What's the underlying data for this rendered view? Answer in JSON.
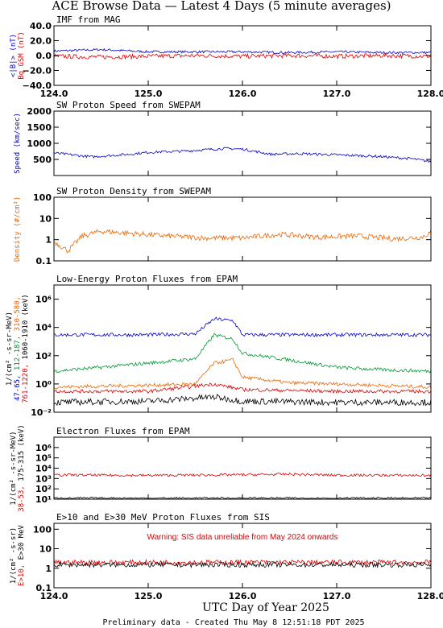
{
  "page": {
    "title": "ACE Browse Data — Latest 4 Days (5 minute averages)",
    "xlabel": "UTC Day of Year 2025",
    "footer": "Preliminary data - Created Thu May  8 12:51:18 PDT 2025",
    "colors": {
      "blue": "#0000cc",
      "red": "#dd0000",
      "green": "#009933",
      "orange": "#ee6600",
      "black": "#000000"
    }
  },
  "chart_data": [
    {
      "id": "mag",
      "type": "line",
      "title": "IMF from MAG",
      "scale": "linear",
      "ylim": [
        -40,
        40
      ],
      "yticks": [
        -40,
        -20,
        0,
        20,
        40
      ],
      "ytick_labels": [
        "−40.0",
        "−20.0",
        "0.0",
        "20.0",
        "40.0"
      ],
      "ylabel_lines": [
        {
          "text": "<|B|> (nT)",
          "color": "#0000cc"
        },
        {
          "text": "Bq GSM (nT)",
          "color": "#dd0000"
        }
      ],
      "xlim": [
        124,
        128
      ],
      "xticks": [
        124,
        125,
        126,
        127,
        128
      ],
      "xtick_labels": [
        "124.0",
        "125.0",
        "126.0",
        "127.0",
        "128.0"
      ],
      "series": [
        {
          "color": "#0000cc",
          "points": [
            [
              124,
              6
            ],
            [
              124.5,
              8
            ],
            [
              125,
              5
            ],
            [
              125.5,
              5
            ],
            [
              126,
              5
            ],
            [
              126.5,
              4
            ],
            [
              127,
              5
            ],
            [
              127.5,
              4
            ],
            [
              128,
              4
            ]
          ]
        },
        {
          "color": "#dd0000",
          "points": [
            [
              124,
              -1
            ],
            [
              124.5,
              -2
            ],
            [
              125,
              -1
            ],
            [
              125.5,
              0
            ],
            [
              126,
              -1
            ],
            [
              126.5,
              0
            ],
            [
              127,
              -1
            ],
            [
              127.5,
              0
            ],
            [
              128,
              -1
            ]
          ],
          "noise": 3
        }
      ]
    },
    {
      "id": "speed",
      "type": "line",
      "title": "SW Proton Speed from SWEPAM",
      "scale": "linear",
      "ylim": [
        0,
        2000
      ],
      "yticks": [
        500,
        1000,
        1500,
        2000
      ],
      "ytick_labels": [
        "500",
        "1000",
        "1500",
        "2000"
      ],
      "ylabel_lines": [
        {
          "text": "Speed (km/sec)",
          "color": "#0000cc"
        }
      ],
      "xlim": [
        124,
        128
      ],
      "xticks": [
        124,
        125,
        126,
        127,
        128
      ],
      "xtick_labels": [
        "",
        "",
        "",
        "",
        ""
      ],
      "series": [
        {
          "color": "#0000cc",
          "points": [
            [
              124,
              700
            ],
            [
              124.4,
              580
            ],
            [
              124.8,
              660
            ],
            [
              125,
              720
            ],
            [
              125.4,
              760
            ],
            [
              125.8,
              840
            ],
            [
              126,
              820
            ],
            [
              126.3,
              660
            ],
            [
              126.6,
              680
            ],
            [
              127,
              640
            ],
            [
              127.4,
              600
            ],
            [
              127.8,
              520
            ],
            [
              128,
              430
            ]
          ]
        }
      ]
    },
    {
      "id": "density",
      "type": "line",
      "title": "SW Proton Density from SWEPAM",
      "scale": "log",
      "ylim": [
        0.1,
        100
      ],
      "yticks": [
        0.1,
        1,
        10,
        100
      ],
      "ytick_labels": [
        "0.1",
        "1",
        "10",
        "100"
      ],
      "ylabel_lines": [
        {
          "text": "Density (#/cm³)",
          "color": "#ee6600"
        }
      ],
      "xlim": [
        124,
        128
      ],
      "xticks": [
        124,
        125,
        126,
        127,
        128
      ],
      "xtick_labels": [
        "",
        "",
        "",
        "",
        ""
      ],
      "series": [
        {
          "color": "#ee6600",
          "points": [
            [
              124,
              0.8
            ],
            [
              124.15,
              0.3
            ],
            [
              124.3,
              1.5
            ],
            [
              124.5,
              2.5
            ],
            [
              124.8,
              2
            ],
            [
              125.2,
              1.5
            ],
            [
              125.6,
              1.2
            ],
            [
              126,
              1.2
            ],
            [
              126.4,
              1.8
            ],
            [
              126.8,
              1.3
            ],
            [
              127.2,
              1.5
            ],
            [
              127.6,
              1.1
            ],
            [
              127.9,
              1.3
            ],
            [
              128,
              2.2
            ]
          ]
        }
      ]
    },
    {
      "id": "epam_p",
      "type": "line",
      "title": "Low-Energy Proton Fluxes from EPAM",
      "scale": "log",
      "ylim": [
        0.01,
        10000000
      ],
      "yticks": [
        0.01,
        1,
        100,
        10000,
        1000000
      ],
      "ytick_labels": [
        "10⁻²",
        "10⁰",
        "10²",
        "10⁴",
        "10⁶"
      ],
      "ylabel_lines": [
        {
          "parts": [
            {
              "text": "1/(cm² -s-sr-MeV)",
              "color": "#000000"
            }
          ]
        },
        {
          "parts": [
            {
              "text": "47-65, ",
              "color": "#0000cc"
            },
            {
              "text": "112-187, ",
              "color": "#009933"
            },
            {
              "text": "310-580,",
              "color": "#ee6600"
            }
          ]
        },
        {
          "parts": [
            {
              "text": "761-1220, ",
              "color": "#dd0000"
            },
            {
              "text": "1060-1910 (keV)",
              "color": "#000000"
            }
          ]
        }
      ],
      "xlim": [
        124,
        128
      ],
      "xticks": [
        124,
        125,
        126,
        127,
        128
      ],
      "xtick_labels": [
        "",
        "",
        "",
        "",
        ""
      ],
      "series": [
        {
          "color": "#0000cc",
          "points": [
            [
              124,
              3000
            ],
            [
              125,
              3000
            ],
            [
              125.5,
              3500
            ],
            [
              125.7,
              40000
            ],
            [
              125.9,
              30000
            ],
            [
              126,
              3000
            ],
            [
              127,
              3000
            ],
            [
              128,
              3000
            ]
          ]
        },
        {
          "color": "#009933",
          "points": [
            [
              124,
              8
            ],
            [
              124.5,
              15
            ],
            [
              125,
              30
            ],
            [
              125.5,
              60
            ],
            [
              125.7,
              3000
            ],
            [
              125.9,
              1500
            ],
            [
              126,
              150
            ],
            [
              126.5,
              50
            ],
            [
              127,
              15
            ],
            [
              127.5,
              10
            ],
            [
              128,
              8
            ]
          ]
        },
        {
          "color": "#ee6600",
          "points": [
            [
              124,
              0.6
            ],
            [
              125,
              0.8
            ],
            [
              125.5,
              1
            ],
            [
              125.7,
              30
            ],
            [
              125.9,
              50
            ],
            [
              126,
              3
            ],
            [
              126.5,
              1.2
            ],
            [
              127,
              1
            ],
            [
              128,
              0.6
            ]
          ]
        },
        {
          "color": "#dd0000",
          "points": [
            [
              124,
              0.3
            ],
            [
              125,
              0.3
            ],
            [
              125.7,
              1
            ],
            [
              126,
              0.4
            ],
            [
              127,
              0.3
            ],
            [
              128,
              0.3
            ]
          ]
        },
        {
          "color": "#000000",
          "points": [
            [
              124,
              0.05
            ],
            [
              125,
              0.06
            ],
            [
              125.7,
              0.12
            ],
            [
              126,
              0.06
            ],
            [
              127,
              0.05
            ],
            [
              128,
              0.05
            ]
          ],
          "noise": 0.45
        }
      ]
    },
    {
      "id": "epam_e",
      "type": "line",
      "title": "Electron Fluxes from EPAM",
      "scale": "log",
      "ylim": [
        10,
        10000000
      ],
      "yticks": [
        10,
        100,
        1000,
        10000,
        100000,
        1000000
      ],
      "ytick_labels": [
        "10¹",
        "10²",
        "10³",
        "10⁴",
        "10⁵",
        "10⁶"
      ],
      "ylabel_lines": [
        {
          "parts": [
            {
              "text": "1/(cm² -s-sr-MeV)",
              "color": "#000000"
            }
          ]
        },
        {
          "parts": [
            {
              "text": "38-53, ",
              "color": "#dd0000"
            },
            {
              "text": "175-315 (keV)",
              "color": "#000000"
            }
          ]
        }
      ],
      "xlim": [
        124,
        128
      ],
      "xticks": [
        124,
        125,
        126,
        127,
        128
      ],
      "xtick_labels": [
        "",
        "",
        "",
        "",
        ""
      ],
      "series": [
        {
          "color": "#dd0000",
          "points": [
            [
              124,
              2200
            ],
            [
              125,
              2000
            ],
            [
              126,
              2300
            ],
            [
              126.5,
              2600
            ],
            [
              127,
              2100
            ],
            [
              128,
              2000
            ]
          ]
        },
        {
          "color": "#000000",
          "points": [
            [
              124,
              12
            ],
            [
              125,
              12
            ],
            [
              126,
              12
            ],
            [
              127,
              12
            ],
            [
              128,
              12
            ]
          ]
        }
      ]
    },
    {
      "id": "sis",
      "type": "line",
      "title": "E>10 and E>30 MeV Proton Fluxes from SIS",
      "scale": "log",
      "ylim": [
        0.1,
        200
      ],
      "yticks": [
        0.1,
        1,
        10,
        100
      ],
      "ytick_labels": [
        "0.1",
        "1",
        "10",
        "100"
      ],
      "ylabel_lines": [
        {
          "parts": [
            {
              "text": "1/(cm² -s-sr)",
              "color": "#000000"
            }
          ]
        },
        {
          "parts": [
            {
              "text": "E>10, ",
              "color": "#dd0000"
            },
            {
              "text": "E>30 MeV",
              "color": "#000000"
            }
          ]
        }
      ],
      "annotation": "Warning: SIS data unreliable from May 2024 onwards",
      "xlim": [
        124,
        128
      ],
      "xticks": [
        124,
        125,
        126,
        127,
        128
      ],
      "xtick_labels": [
        "124.0",
        "125.0",
        "126.0",
        "127.0",
        "128.0"
      ],
      "series": [
        {
          "color": "#dd0000",
          "points": [
            [
              124,
              2
            ],
            [
              125,
              2
            ],
            [
              126,
              2
            ],
            [
              127,
              2
            ],
            [
              128,
              2
            ]
          ]
        },
        {
          "color": "#000000",
          "points": [
            [
              124,
              1.5
            ],
            [
              125,
              1.5
            ],
            [
              126,
              1.5
            ],
            [
              127,
              1.5
            ],
            [
              128,
              1.5
            ]
          ]
        }
      ]
    }
  ]
}
